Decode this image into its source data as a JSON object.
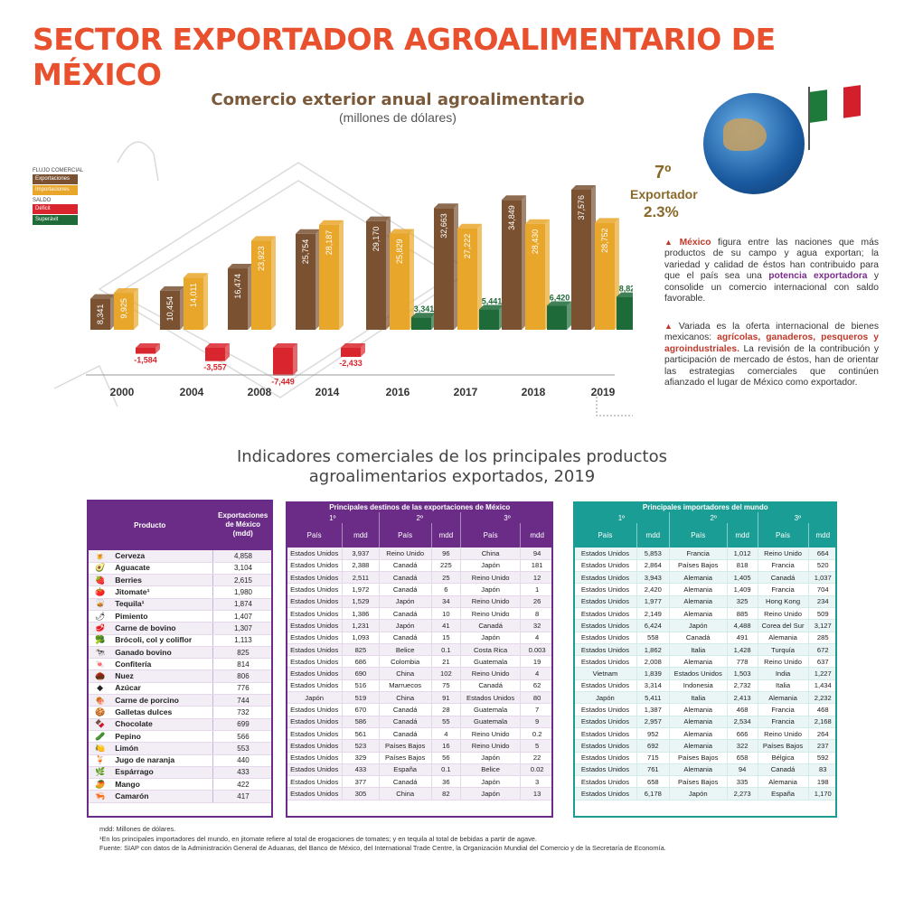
{
  "main_title": "SECTOR EXPORTADOR AGROALIMENTARIO DE MÉXICO",
  "colors": {
    "title": "#e8502e",
    "exports": "#7a5232",
    "imports": "#e8a62a",
    "deficit": "#d9262e",
    "surplus": "#1e6a38",
    "table_purple": "#6a2c86",
    "table_teal": "#1a9d94"
  },
  "legend": {
    "flow_header": "FLUJO COMERCIAL",
    "exports": "Exportaciones",
    "imports": "Importaciones",
    "balance_header": "SALDO",
    "deficit": "Déficit",
    "surplus": "Superávit"
  },
  "chart_data": {
    "type": "bar",
    "title": "Comercio exterior anual agroalimentario",
    "subtitle": "(millones de dólares)",
    "categories": [
      "2000",
      "2004",
      "2008",
      "2014",
      "2016",
      "2017",
      "2018",
      "2019"
    ],
    "series": [
      {
        "name": "Exportaciones",
        "values": [
          8341,
          10454,
          16474,
          25754,
          29170,
          32663,
          34849,
          37576
        ],
        "labels": [
          "8,341",
          "10,454",
          "16,474",
          "25,754",
          "29,170",
          "32,663",
          "34,849",
          "37,576"
        ]
      },
      {
        "name": "Importaciones",
        "values": [
          9925,
          14011,
          23923,
          28187,
          25829,
          27222,
          28430,
          28752
        ],
        "labels": [
          "9,925",
          "14,011",
          "23,923",
          "28,187",
          "25,829",
          "27,222",
          "28,430",
          "28,752"
        ]
      },
      {
        "name": "Saldo",
        "values": [
          -1584,
          -3557,
          -7449,
          -2433,
          3341,
          5441,
          6420,
          8824
        ],
        "labels": [
          "-1,584",
          "-3,557",
          "-7,449",
          "-2,433",
          "3,341",
          "5,441",
          "6,420",
          "8,824"
        ]
      }
    ]
  },
  "rank": {
    "position": "7º",
    "label": "Exportador",
    "share": "2.3%"
  },
  "paragraph1": {
    "lead": "México",
    "t1": " figura entre las naciones que más productos de su campo y agua exportan; la variedad y calidad de éstos han contribuido para que el país sea una ",
    "hl": "potencia exportadora",
    "t2": " y consolide un comercio internacional con saldo favorable."
  },
  "paragraph2": {
    "t1": "Variada es la oferta internacional de bienes mexicanos: ",
    "hl": "agrícolas, ganaderos, pesqueros y agroindustriales.",
    "t2": " La revisión de la contribución y participación de mercado de éstos, han de orientar las estrategias comerciales que continúen afianzado el lugar de México como exportador."
  },
  "section_title_1": "Indicadores comerciales de los principales productos",
  "section_title_2": "agroalimentarios exportados, 2019",
  "products_table": {
    "col_product": "Producto",
    "col_exports": "Exportaciones de México (mdd)",
    "rows": [
      {
        "icon": "beer-icon",
        "glyph": "🍺",
        "name": "Cerveza",
        "value": "4,858"
      },
      {
        "icon": "avocado-icon",
        "glyph": "🥑",
        "name": "Aguacate",
        "value": "3,104"
      },
      {
        "icon": "berries-icon",
        "glyph": "🍓",
        "name": "Berries",
        "value": "2,615"
      },
      {
        "icon": "tomato-icon",
        "glyph": "🍅",
        "name": "Jitomate¹",
        "value": "1,980"
      },
      {
        "icon": "tequila-icon",
        "glyph": "🥃",
        "name": "Tequila¹",
        "value": "1,874"
      },
      {
        "icon": "pepper-icon",
        "glyph": "🌶",
        "name": "Pimiento",
        "value": "1,407"
      },
      {
        "icon": "beef-icon",
        "glyph": "🥩",
        "name": "Carne de bovino",
        "value": "1,307"
      },
      {
        "icon": "broccoli-icon",
        "glyph": "🥦",
        "name": "Brócoli, col y coliflor",
        "value": "1,113"
      },
      {
        "icon": "cattle-icon",
        "glyph": "🐄",
        "name": "Ganado bovino",
        "value": "825"
      },
      {
        "icon": "candy-icon",
        "glyph": "🍬",
        "name": "Confitería",
        "value": "814"
      },
      {
        "icon": "nut-icon",
        "glyph": "🌰",
        "name": "Nuez",
        "value": "806"
      },
      {
        "icon": "sugar-icon",
        "glyph": "◆",
        "name": "Azúcar",
        "value": "776"
      },
      {
        "icon": "pork-icon",
        "glyph": "🍖",
        "name": "Carne de porcino",
        "value": "744"
      },
      {
        "icon": "cookie-icon",
        "glyph": "🍪",
        "name": "Galletas dulces",
        "value": "732"
      },
      {
        "icon": "chocolate-icon",
        "glyph": "🍫",
        "name": "Chocolate",
        "value": "699"
      },
      {
        "icon": "cucumber-icon",
        "glyph": "🥒",
        "name": "Pepino",
        "value": "566"
      },
      {
        "icon": "lime-icon",
        "glyph": "🍋",
        "name": "Limón",
        "value": "553"
      },
      {
        "icon": "juice-icon",
        "glyph": "🍹",
        "name": "Jugo de naranja",
        "value": "440"
      },
      {
        "icon": "asparagus-icon",
        "glyph": "🌿",
        "name": "Espárrago",
        "value": "433"
      },
      {
        "icon": "mango-icon",
        "glyph": "🥭",
        "name": "Mango",
        "value": "422"
      },
      {
        "icon": "shrimp-icon",
        "glyph": "🦐",
        "name": "Camarón",
        "value": "417"
      }
    ]
  },
  "destinations_table": {
    "caption": "Principales destinos de las exportaciones de México",
    "ranks": [
      "1º",
      "2º",
      "3º"
    ],
    "col_country": "País",
    "col_value": "mdd",
    "rows": [
      [
        "Estados Unidos",
        "3,937",
        "Reino Unido",
        "96",
        "China",
        "94"
      ],
      [
        "Estados Unidos",
        "2,388",
        "Canadá",
        "225",
        "Japón",
        "181"
      ],
      [
        "Estados Unidos",
        "2,511",
        "Canadá",
        "25",
        "Reino Unido",
        "12"
      ],
      [
        "Estados Unidos",
        "1,972",
        "Canadá",
        "6",
        "Japón",
        "1"
      ],
      [
        "Estados Unidos",
        "1,529",
        "Japón",
        "34",
        "Reino Unido",
        "26"
      ],
      [
        "Estados Unidos",
        "1,386",
        "Canadá",
        "10",
        "Reino Unido",
        "8"
      ],
      [
        "Estados Unidos",
        "1,231",
        "Japón",
        "41",
        "Canadá",
        "32"
      ],
      [
        "Estados Unidos",
        "1,093",
        "Canadá",
        "15",
        "Japón",
        "4"
      ],
      [
        "Estados Unidos",
        "825",
        "Belice",
        "0.1",
        "Costa Rica",
        "0.003"
      ],
      [
        "Estados Unidos",
        "686",
        "Colombia",
        "21",
        "Guatemala",
        "19"
      ],
      [
        "Estados Unidos",
        "690",
        "China",
        "102",
        "Reino Unido",
        "4"
      ],
      [
        "Estados Unidos",
        "516",
        "Marruecos",
        "75",
        "Canadá",
        "62"
      ],
      [
        "Japón",
        "519",
        "China",
        "91",
        "Estados Unidos",
        "80"
      ],
      [
        "Estados Unidos",
        "670",
        "Canadá",
        "28",
        "Guatemala",
        "7"
      ],
      [
        "Estados Unidos",
        "586",
        "Canadá",
        "55",
        "Guatemala",
        "9"
      ],
      [
        "Estados Unidos",
        "561",
        "Canadá",
        "4",
        "Reino Unido",
        "0.2"
      ],
      [
        "Estados Unidos",
        "523",
        "Países Bajos",
        "16",
        "Reino Unido",
        "5"
      ],
      [
        "Estados Unidos",
        "329",
        "Países Bajos",
        "56",
        "Japón",
        "22"
      ],
      [
        "Estados Unidos",
        "433",
        "España",
        "0.1",
        "Belice",
        "0.02"
      ],
      [
        "Estados Unidos",
        "377",
        "Canadá",
        "36",
        "Japón",
        "3"
      ],
      [
        "Estados Unidos",
        "305",
        "China",
        "82",
        "Japón",
        "13"
      ]
    ]
  },
  "importers_table": {
    "caption": "Principales importadores del mundo",
    "ranks": [
      "1º",
      "2º",
      "3º"
    ],
    "col_country": "País",
    "col_value": "mdd",
    "rows": [
      [
        "Estados Unidos",
        "5,853",
        "Francia",
        "1,012",
        "Reino Unido",
        "664"
      ],
      [
        "Estados Unidos",
        "2,864",
        "Países Bajos",
        "818",
        "Francia",
        "520"
      ],
      [
        "Estados Unidos",
        "3,943",
        "Alemania",
        "1,405",
        "Canadá",
        "1,037"
      ],
      [
        "Estados Unidos",
        "2,420",
        "Alemania",
        "1,409",
        "Francia",
        "704"
      ],
      [
        "Estados Unidos",
        "1,977",
        "Alemania",
        "325",
        "Hong Kong",
        "234"
      ],
      [
        "Estados Unidos",
        "2,149",
        "Alemania",
        "885",
        "Reino Unido",
        "509"
      ],
      [
        "Estados Unidos",
        "6,424",
        "Japón",
        "4,488",
        "Corea del Sur",
        "3,127"
      ],
      [
        "Estados Unidos",
        "558",
        "Canadá",
        "491",
        "Alemania",
        "285"
      ],
      [
        "Estados Unidos",
        "1,862",
        "Italia",
        "1,428",
        "Turquía",
        "672"
      ],
      [
        "Estados Unidos",
        "2,008",
        "Alemania",
        "778",
        "Reino Unido",
        "637"
      ],
      [
        "Vietnam",
        "1,839",
        "Estados Unidos",
        "1,503",
        "India",
        "1,227"
      ],
      [
        "Estados Unidos",
        "3,314",
        "Indonesia",
        "2,732",
        "Italia",
        "1,434"
      ],
      [
        "Japón",
        "5,411",
        "Italia",
        "2,413",
        "Alemania",
        "2,232"
      ],
      [
        "Estados Unidos",
        "1,387",
        "Alemania",
        "468",
        "Francia",
        "468"
      ],
      [
        "Estados Unidos",
        "2,957",
        "Alemania",
        "2,534",
        "Francia",
        "2,168"
      ],
      [
        "Estados Unidos",
        "952",
        "Alemania",
        "666",
        "Reino Unido",
        "264"
      ],
      [
        "Estados Unidos",
        "692",
        "Alemania",
        "322",
        "Países Bajos",
        "237"
      ],
      [
        "Estados Unidos",
        "715",
        "Países Bajos",
        "658",
        "Bélgica",
        "592"
      ],
      [
        "Estados Unidos",
        "761",
        "Alemania",
        "94",
        "Canadá",
        "83"
      ],
      [
        "Estados Unidos",
        "658",
        "Países Bajos",
        "335",
        "Alemania",
        "198"
      ],
      [
        "Estados Unidos",
        "6,178",
        "Japón",
        "2,273",
        "España",
        "1,170"
      ]
    ]
  },
  "notes": {
    "n1": "mdd: Millones de dólares.",
    "n2": "¹En los principales importadores del mundo, en jitomate refiere al total de erogaciones de tomates; y en tequila al total de bebidas a partir de agave.",
    "n3": "Fuente: SIAP con datos de la Administración General de Aduanas, del Banco de México, del International Trade Centre, la Organización Mundial del Comercio y de la Secretaría de Economía."
  }
}
